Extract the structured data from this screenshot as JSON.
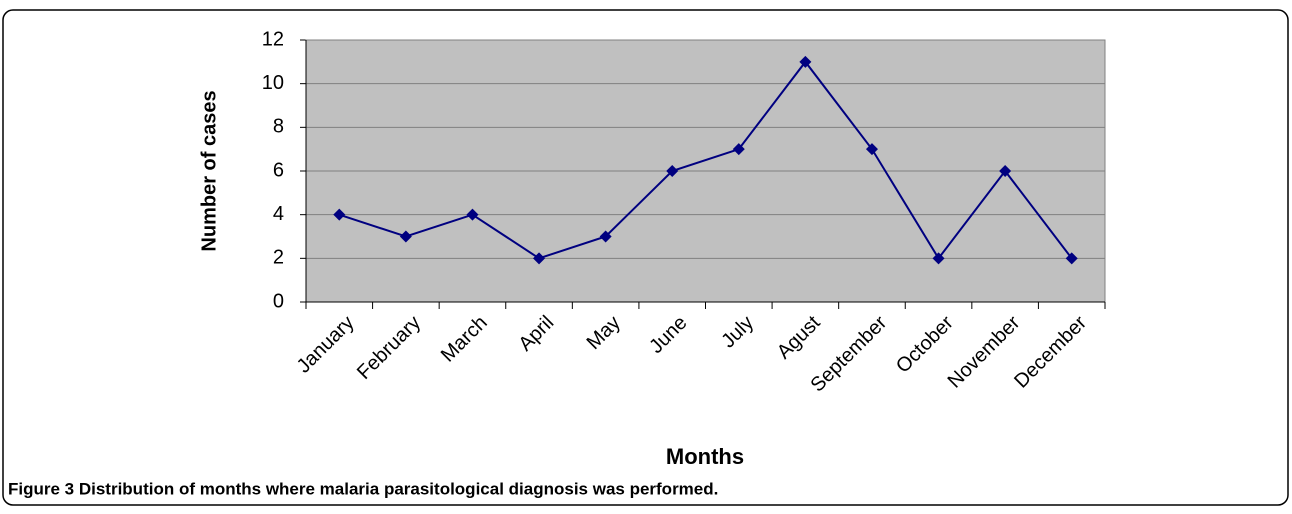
{
  "chart_data": {
    "type": "line",
    "caption": "Figure 3 Distribution of months where malaria parasitological diagnosis was performed.",
    "x_label": "Months",
    "y_label": "Number of cases",
    "categories": [
      "January",
      "February",
      "March",
      "April",
      "May",
      "June",
      "July",
      "Agust",
      "September",
      "October",
      "November",
      "December"
    ],
    "values": [
      4,
      3,
      4,
      2,
      3,
      6,
      7,
      11,
      7,
      2,
      6,
      2
    ],
    "color": "#000080",
    "plot_background": "#c0c0c0",
    "ylim": [
      0,
      12
    ],
    "yticks": [
      0,
      2,
      4,
      6,
      8,
      10,
      12
    ],
    "grid": true
  }
}
